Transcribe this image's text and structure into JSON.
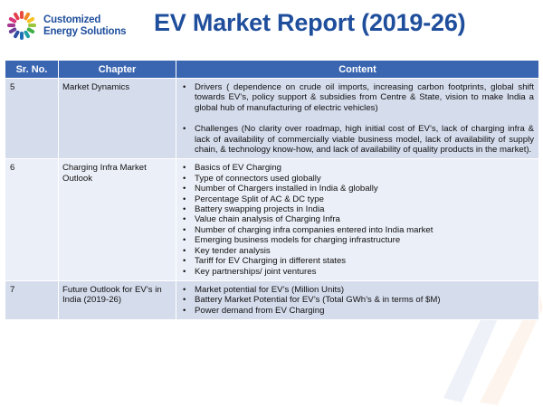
{
  "header": {
    "logo_line1": "Customized",
    "logo_line2": "Energy Solutions",
    "title": "EV Market Report (2019-26)"
  },
  "table": {
    "columns": [
      "Sr. No.",
      "Chapter",
      "Content"
    ],
    "rows": [
      {
        "no": "5",
        "chapter": "Market Dynamics",
        "items": [
          "Drivers ( dependence on crude oil imports, increasing carbon footprints, global shift towards EV’s, policy support & subsidies from Centre & State, vision to make India a global hub of manufacturing of electric vehicles)",
          "Challenges (No clarity over roadmap, high initial cost of EV’s, lack of charging infra & lack of availability of commercially viable business model, lack of availability of supply chain, & technology know-how, and lack of availability of quality products in the market)."
        ]
      },
      {
        "no": "6",
        "chapter": "Charging Infra Market Outlook",
        "items": [
          "Basics of EV Charging",
          "Type of connectors used globally",
          "Number of Chargers installed in India & globally",
          "Percentage Split of AC & DC type",
          "Battery swapping projects in India",
          "Value chain analysis of Charging Infra",
          "Number of charging infra companies entered into India market",
          "Emerging business models for charging infrastructure",
          "Key tender analysis",
          "Tariff for EV Charging in different states",
          "Key partnerships/ joint ventures"
        ]
      },
      {
        "no": "7",
        "chapter": "Future Outlook for EV’s in India (2019-26)",
        "items": [
          "Market potential for EV’s (Million Units)",
          "Battery Market Potential for EV’s (Total GWh’s & in terms of $M)",
          "Power demand from EV Charging"
        ]
      }
    ]
  },
  "colors": {
    "brand_blue": "#1f4e9c",
    "header_blue": "#3a66b1",
    "row_dark": "#d5dcec",
    "row_light": "#ebeff7"
  }
}
